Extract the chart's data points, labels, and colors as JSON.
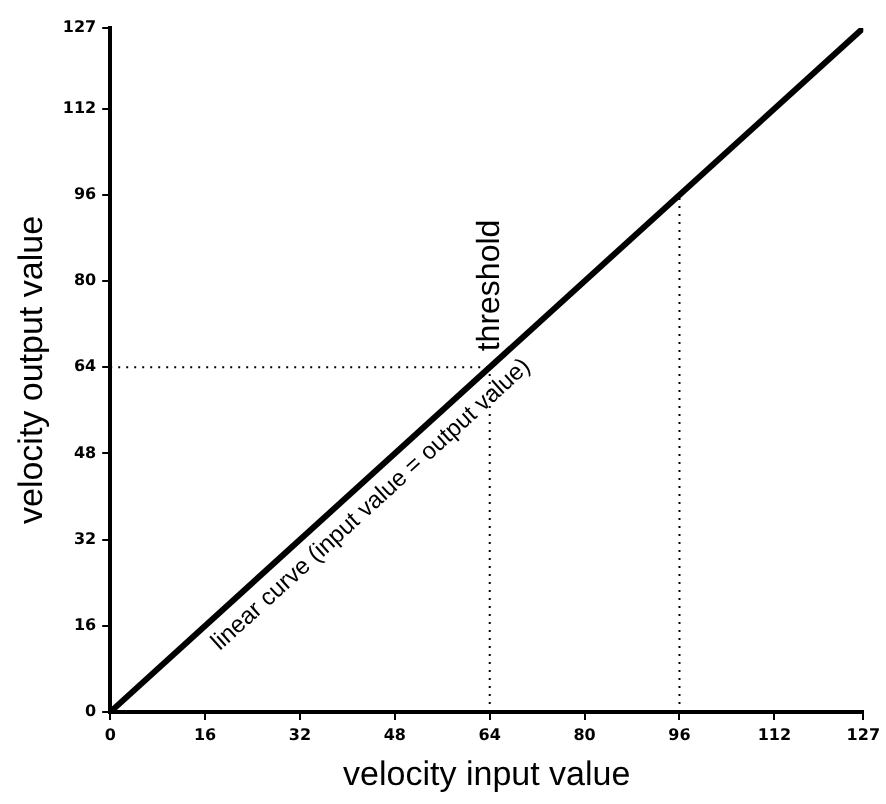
{
  "chart_data": {
    "type": "line",
    "xlabel": "velocity input value",
    "ylabel": "velocity output value",
    "xlim": [
      0,
      127
    ],
    "ylim": [
      0,
      127
    ],
    "xticks": [
      0,
      16,
      32,
      48,
      64,
      80,
      96,
      112,
      127
    ],
    "yticks": [
      0,
      16,
      32,
      48,
      64,
      80,
      96,
      112,
      127
    ],
    "series": [
      {
        "name": "linear curve (input value = output value)",
        "color": "#000000",
        "x": [
          0,
          127
        ],
        "values": [
          0,
          127
        ]
      }
    ],
    "ref_lines": [
      {
        "axis": "x",
        "value": 64,
        "label": "threshold",
        "line_style": "dotted"
      },
      {
        "axis": "y",
        "value": 64,
        "line_style": "dotted"
      },
      {
        "axis": "x",
        "value": 96,
        "line_style": "dotted"
      }
    ],
    "grid": false,
    "legend": false,
    "marker": "none",
    "line_style": "solid"
  }
}
